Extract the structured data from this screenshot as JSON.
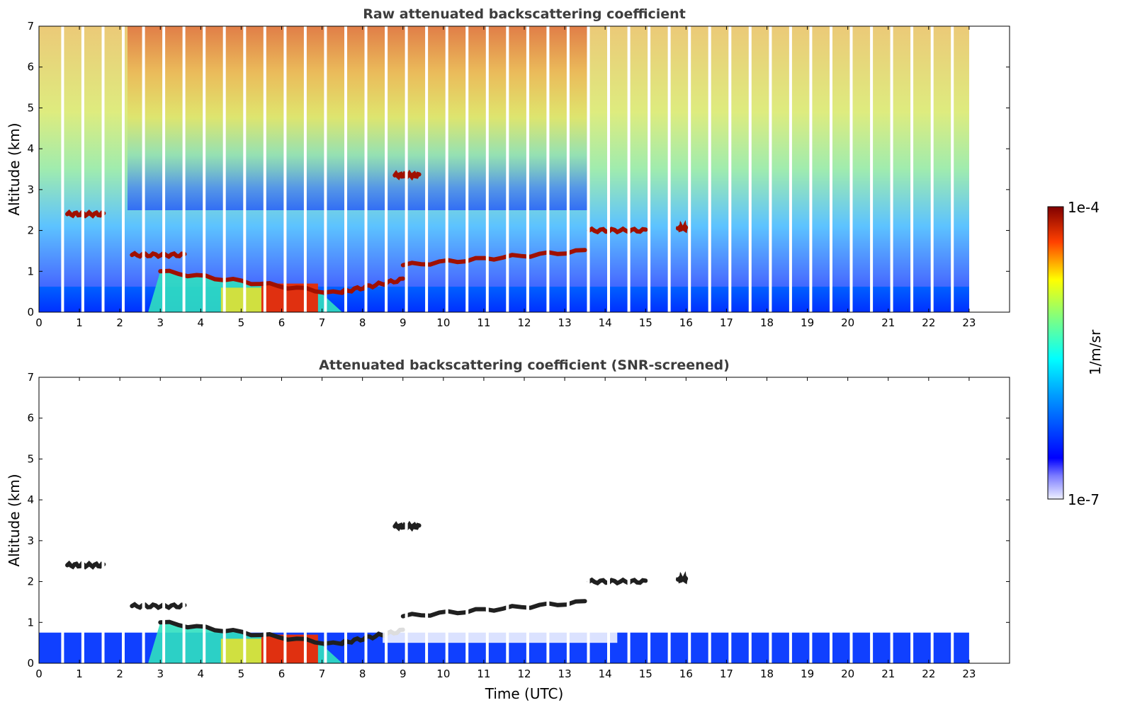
{
  "chart_data": [
    {
      "type": "heatmap",
      "title": "Raw attenuated backscattering coefficient",
      "xlabel": "",
      "ylabel": "Altitude (km)",
      "xlim": [
        0,
        24
      ],
      "ylim": [
        0,
        7
      ],
      "xticks": [
        "0",
        "1",
        "2",
        "3",
        "4",
        "5",
        "6",
        "7",
        "8",
        "9",
        "10",
        "11",
        "12",
        "13",
        "14",
        "15",
        "16",
        "17",
        "18",
        "19",
        "20",
        "21",
        "22",
        "23"
      ],
      "yticks": [
        "0",
        "1",
        "2",
        "3",
        "4",
        "5",
        "6",
        "7"
      ],
      "data_end_hour": 23,
      "cloud_layers_km": [
        {
          "x": [
            0.7,
            1.6
          ],
          "alt": 2.4
        },
        {
          "x": [
            2.3,
            3.6
          ],
          "alt": 1.4
        },
        {
          "x": [
            3.0,
            7.5
          ],
          "alt": [
            1.0,
            0.45
          ]
        },
        {
          "x": [
            7.5,
            9.0
          ],
          "alt": [
            0.5,
            0.8
          ]
        },
        {
          "x": [
            8.8,
            9.4
          ],
          "alt": 3.35
        },
        {
          "x": [
            9.0,
            13.5
          ],
          "alt": [
            1.15,
            1.5
          ]
        },
        {
          "x": [
            13.6,
            15.0
          ],
          "alt": 2.0
        },
        {
          "x": [
            15.8,
            16.0
          ],
          "alt": 2.05
        }
      ]
    },
    {
      "type": "heatmap",
      "title": "Attenuated backscattering coefficient (SNR-screened)",
      "xlabel": "Time (UTC)",
      "ylabel": "Altitude (km)",
      "xlim": [
        0,
        24
      ],
      "ylim": [
        0,
        7
      ],
      "xticks": [
        "0",
        "1",
        "2",
        "3",
        "4",
        "5",
        "6",
        "7",
        "8",
        "9",
        "10",
        "11",
        "12",
        "13",
        "14",
        "15",
        "16",
        "17",
        "18",
        "19",
        "20",
        "21",
        "22",
        "23"
      ],
      "yticks": [
        "0",
        "1",
        "2",
        "3",
        "4",
        "5",
        "6",
        "7"
      ],
      "data_end_hour": 23
    }
  ],
  "colorbar": {
    "max_label": "1e-4",
    "min_label": "1e-7",
    "label": "1/m/sr"
  }
}
